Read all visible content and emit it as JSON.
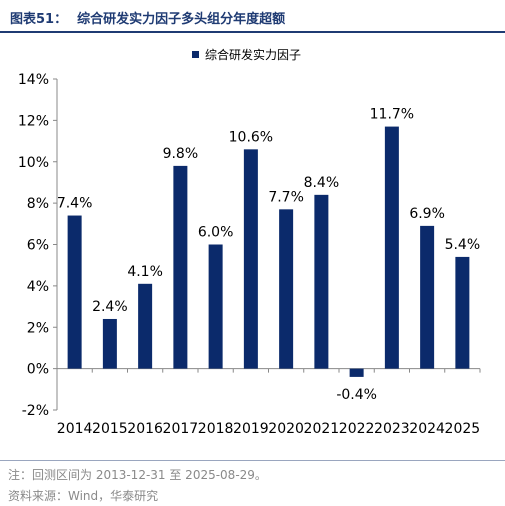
{
  "header": {
    "figure_label": "图表51：",
    "title": "综合研发实力因子多头组分年度超额"
  },
  "footer": {
    "note": "注：回测区间为 2013-12-31 至 2025-08-29。",
    "source": "资料来源：Wind，华泰研究"
  },
  "chart_data": {
    "type": "bar",
    "title": "",
    "xlabel": "",
    "ylabel": "",
    "categories": [
      "2014",
      "2015",
      "2016",
      "2017",
      "2018",
      "2019",
      "2020",
      "2021",
      "2022",
      "2023",
      "2024",
      "2025"
    ],
    "series": [
      {
        "name": "综合研发实力因子",
        "values": [
          7.4,
          2.4,
          4.1,
          9.8,
          6.0,
          10.6,
          7.7,
          8.4,
          -0.4,
          11.7,
          6.9,
          5.4
        ],
        "data_labels": [
          "7.4%",
          "2.4%",
          "4.1%",
          "9.8%",
          "6.0%",
          "10.6%",
          "7.7%",
          "8.4%",
          "-0.4%",
          "11.7%",
          "6.9%",
          "5.4%"
        ]
      }
    ],
    "ylim": [
      -2,
      14
    ],
    "yticks": [
      -2,
      0,
      2,
      4,
      6,
      8,
      10,
      12,
      14
    ],
    "ytick_labels": [
      "-2%",
      "0%",
      "2%",
      "4%",
      "6%",
      "8%",
      "10%",
      "12%",
      "14%"
    ],
    "grid": false,
    "legend_position": "top-center",
    "colors": {
      "bar": "#0b2a6b",
      "axis": "#888888",
      "text": "#000000"
    }
  }
}
